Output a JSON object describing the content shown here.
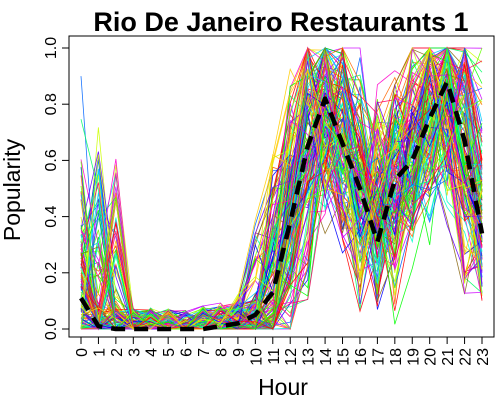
{
  "chart_data": {
    "type": "line",
    "title": "Rio De Janeiro Restaurants 1",
    "xlabel": "Hour",
    "ylabel": "Popularity",
    "x": [
      0,
      1,
      2,
      3,
      4,
      5,
      6,
      7,
      8,
      9,
      10,
      11,
      12,
      13,
      14,
      15,
      16,
      17,
      18,
      19,
      20,
      21,
      22,
      23
    ],
    "x_tick_labels": [
      "0",
      "1",
      "2",
      "3",
      "4",
      "5",
      "6",
      "7",
      "8",
      "9",
      "10",
      "11",
      "12",
      "13",
      "14",
      "15",
      "16",
      "17",
      "18",
      "19",
      "20",
      "21",
      "22",
      "23"
    ],
    "y_ticks": [
      0.0,
      0.2,
      0.4,
      0.6,
      0.8,
      1.0
    ],
    "y_tick_labels": [
      "0.0",
      "0.2",
      "0.4",
      "0.6",
      "0.8",
      "1.0"
    ],
    "xlim": [
      0,
      23
    ],
    "ylim": [
      0,
      1
    ],
    "grid": false,
    "legend": "none",
    "individual_series": {
      "count": 150,
      "style": "thin rainbow-colored lines",
      "colors": [
        "#ff0000",
        "#ff6600",
        "#ffcc00",
        "#ccff00",
        "#66ff00",
        "#00ff00",
        "#00ff66",
        "#00ffcc",
        "#00ccff",
        "#0066ff",
        "#0000ff",
        "#6600ff",
        "#cc00ff",
        "#ff00cc",
        "#ff0066",
        "#8b6914"
      ]
    },
    "mean_series": {
      "style": "thick black dashed line",
      "color": "#000000",
      "values": [
        0.11,
        0.01,
        0.0,
        0.0,
        0.0,
        0.0,
        0.0,
        0.0,
        0.01,
        0.02,
        0.05,
        0.13,
        0.38,
        0.65,
        0.82,
        0.66,
        0.5,
        0.31,
        0.53,
        0.6,
        0.75,
        0.88,
        0.67,
        0.34
      ]
    }
  }
}
